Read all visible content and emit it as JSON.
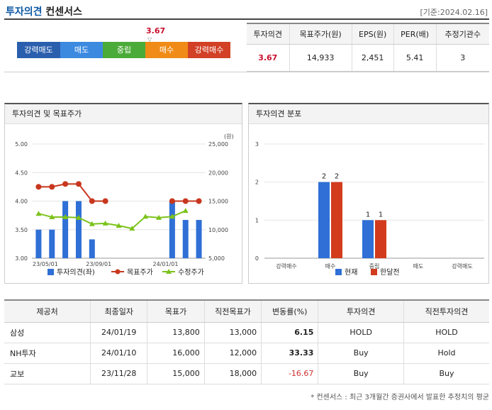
{
  "header": {
    "title_a": "투자의견",
    "title_b": "컨센서스",
    "date": "[기준:2024.02.16]"
  },
  "rating": {
    "value": "3.67",
    "pointer": "▽",
    "position_fraction": 0.667,
    "segments": [
      {
        "label": "강력매도",
        "color": "#2a5fae"
      },
      {
        "label": "매도",
        "color": "#3c8ae0"
      },
      {
        "label": "중립",
        "color": "#4bab38"
      },
      {
        "label": "매수",
        "color": "#f08b17"
      },
      {
        "label": "강력매수",
        "color": "#d24026"
      }
    ]
  },
  "summary": {
    "headers": [
      "투자의견",
      "목표주가(원)",
      "EPS(원)",
      "PER(배)",
      "추정기관수"
    ],
    "values": [
      "3.67",
      "14,933",
      "2,451",
      "5.41",
      "3"
    ]
  },
  "chart_left_title": "투자의견 및 목표주가",
  "chart_right_title": "투자의견 분포",
  "chart_data": [
    {
      "type": "bar",
      "title": "투자의견 및 목표주가",
      "yleft_ticks": [
        "5.00",
        "4.50",
        "4.00",
        "3.50",
        "3.00"
      ],
      "yright_ticks": [
        "25,000",
        "20,000",
        "15,000",
        "10,000",
        "5,000"
      ],
      "yright_unit": "(원)",
      "ylim_left": [
        3.0,
        5.0
      ],
      "ylim_right": [
        5000,
        25000
      ],
      "x_ticks": [
        "23/05/01",
        "23/09/01",
        "24/01/01"
      ],
      "legend": [
        "투자의견(좌)",
        "목표주가",
        "수정주가"
      ],
      "series": [
        {
          "name": "투자의견(좌)",
          "type": "bar",
          "color": "#2f6fd6",
          "points": [
            [
              0,
              3.5
            ],
            [
              1,
              3.5
            ],
            [
              2,
              4.0
            ],
            [
              3,
              4.0
            ],
            [
              4,
              3.33
            ],
            [
              10,
              4.0
            ],
            [
              11,
              3.67
            ],
            [
              12,
              3.67
            ]
          ]
        },
        {
          "name": "목표주가",
          "type": "line",
          "color": "#c8371e",
          "segments": [
            [
              [
                0,
                17500
              ],
              [
                1,
                17500
              ],
              [
                2,
                18000
              ],
              [
                3,
                18000
              ],
              [
                4,
                15000
              ],
              [
                5,
                15000
              ]
            ],
            [
              [
                10,
                15000
              ],
              [
                11,
                15000
              ],
              [
                12,
                15000
              ]
            ]
          ]
        },
        {
          "name": "수정주가",
          "type": "line",
          "color": "#7cc31c",
          "points": [
            [
              0,
              12800
            ],
            [
              1,
              12200
            ],
            [
              2,
              12200
            ],
            [
              3,
              12100
            ],
            [
              4,
              11000
            ],
            [
              5,
              11100
            ],
            [
              6,
              10700
            ],
            [
              7,
              10200
            ],
            [
              8,
              12300
            ],
            [
              9,
              12100
            ],
            [
              10,
              12300
            ],
            [
              11,
              13300
            ]
          ]
        }
      ]
    },
    {
      "type": "bar",
      "title": "투자의견 분포",
      "categories": [
        "강력매수",
        "매수",
        "중립",
        "매도",
        "강력매도"
      ],
      "ylim": [
        0,
        3
      ],
      "y_ticks": [
        "3",
        "2",
        "1",
        "0"
      ],
      "legend": [
        "현재",
        "한달전"
      ],
      "series": [
        {
          "name": "현재",
          "color": "#2f6fd6",
          "values": [
            0,
            2,
            1,
            0,
            0
          ]
        },
        {
          "name": "한달전",
          "color": "#d23b1c",
          "values": [
            0,
            2,
            1,
            0,
            0
          ]
        }
      ]
    }
  ],
  "detail": {
    "headers": [
      "제공처",
      "최종일자",
      "목표가",
      "직전목표가",
      "변동률(%)",
      "투자의견",
      "직전투자의견"
    ],
    "rows": [
      [
        "삼성",
        "24/01/19",
        "13,800",
        "13,000",
        "6.15",
        "HOLD",
        "HOLD"
      ],
      [
        "NH투자",
        "24/01/10",
        "16,000",
        "12,000",
        "33.33",
        "Buy",
        "Hold"
      ],
      [
        "교보",
        "23/11/28",
        "15,000",
        "18,000",
        "-16.67",
        "Buy",
        "Buy"
      ]
    ]
  },
  "footnote": "* 컨센서스 : 최근 3개월간 증권사에서 발표한 추정치의 평균"
}
